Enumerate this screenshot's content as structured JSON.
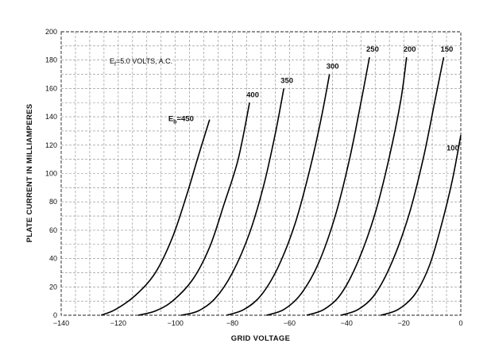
{
  "chart_data": {
    "type": "line",
    "title": "",
    "xlabel": "GRID VOLTAGE",
    "ylabel": "PLATE CURRENT IN MILLIAMPERES",
    "xlim": [
      -140,
      0
    ],
    "ylim": [
      0,
      200
    ],
    "x_ticks": [
      -140,
      -120,
      -100,
      -80,
      -60,
      -40,
      -20,
      0
    ],
    "y_ticks": [
      0,
      20,
      40,
      60,
      80,
      100,
      120,
      140,
      160,
      180,
      200
    ],
    "grid": true,
    "annotation": "E",
    "annotation_sub": "f",
    "annotation_rest": "=5.0  VOLTS, A.C.",
    "series_prefix": "E",
    "series_prefix_sub": "b",
    "series": [
      {
        "name": "450",
        "label": "=450",
        "points": [
          [
            -126,
            0
          ],
          [
            -121,
            4
          ],
          [
            -114,
            14
          ],
          [
            -107,
            30
          ],
          [
            -101,
            55
          ],
          [
            -96,
            85
          ],
          [
            -92,
            112
          ],
          [
            -88,
            138
          ]
        ]
      },
      {
        "name": "400",
        "label": "400",
        "points": [
          [
            -113,
            0
          ],
          [
            -107,
            3
          ],
          [
            -101,
            10
          ],
          [
            -94,
            25
          ],
          [
            -88,
            48
          ],
          [
            -83,
            78
          ],
          [
            -78,
            110
          ],
          [
            -74,
            150
          ]
        ]
      },
      {
        "name": "350",
        "label": "350",
        "points": [
          [
            -98,
            0
          ],
          [
            -92,
            3
          ],
          [
            -86,
            12
          ],
          [
            -80,
            30
          ],
          [
            -74,
            58
          ],
          [
            -69,
            92
          ],
          [
            -65,
            128
          ],
          [
            -62,
            160
          ]
        ]
      },
      {
        "name": "300",
        "label": "300",
        "points": [
          [
            -82,
            0
          ],
          [
            -76,
            4
          ],
          [
            -70,
            14
          ],
          [
            -64,
            34
          ],
          [
            -58,
            65
          ],
          [
            -53,
            102
          ],
          [
            -49,
            138
          ],
          [
            -46,
            170
          ]
        ]
      },
      {
        "name": "250",
        "label": "250",
        "points": [
          [
            -68,
            0
          ],
          [
            -62,
            4
          ],
          [
            -56,
            15
          ],
          [
            -50,
            36
          ],
          [
            -44,
            70
          ],
          [
            -39,
            110
          ],
          [
            -35,
            150
          ],
          [
            -32,
            182
          ]
        ]
      },
      {
        "name": "200",
        "label": "200",
        "points": [
          [
            -54,
            0
          ],
          [
            -48,
            4
          ],
          [
            -42,
            15
          ],
          [
            -36,
            38
          ],
          [
            -30,
            72
          ],
          [
            -25,
            112
          ],
          [
            -21,
            152
          ],
          [
            -19,
            182
          ]
        ]
      },
      {
        "name": "150",
        "label": "150",
        "points": [
          [
            -42,
            0
          ],
          [
            -36,
            4
          ],
          [
            -30,
            15
          ],
          [
            -24,
            38
          ],
          [
            -18,
            72
          ],
          [
            -13,
            112
          ],
          [
            -9,
            152
          ],
          [
            -6,
            182
          ]
        ]
      },
      {
        "name": "100",
        "label": "100",
        "points": [
          [
            -28,
            0
          ],
          [
            -22,
            4
          ],
          [
            -16,
            15
          ],
          [
            -11,
            35
          ],
          [
            -7,
            62
          ],
          [
            -3,
            95
          ],
          [
            0,
            127
          ]
        ]
      }
    ]
  }
}
